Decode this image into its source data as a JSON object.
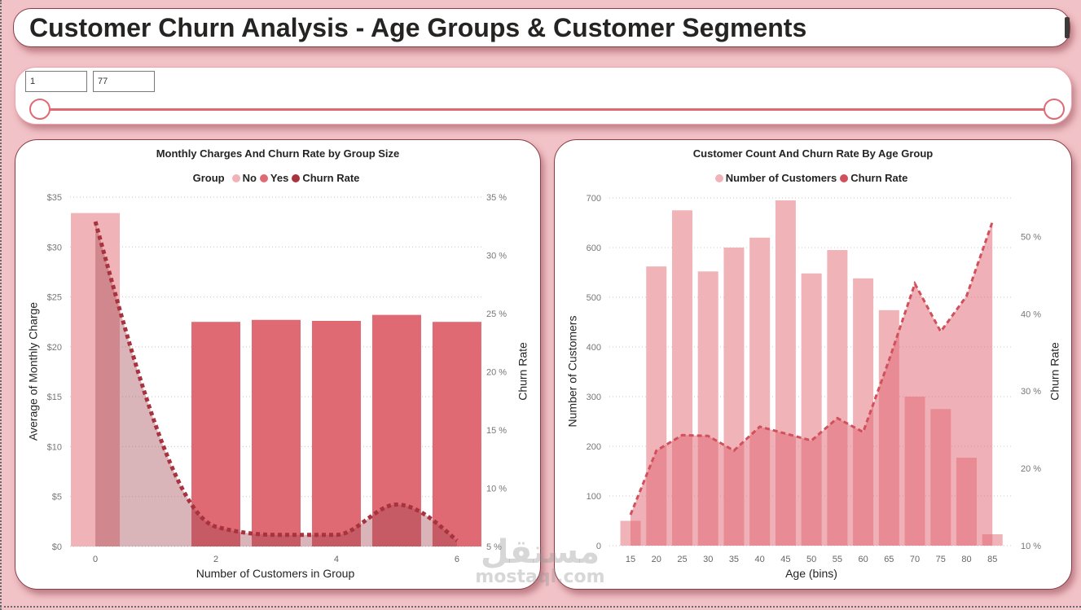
{
  "header": {
    "title": "Customer Churn Analysis - Age Groups & Customer Segments"
  },
  "filter_slider": {
    "min_input": "1",
    "max_input": "77",
    "min": 1,
    "max": 77,
    "selected_range": [
      1,
      77
    ],
    "accent_color": "#e06a74"
  },
  "watermark": {
    "arabic": "مستقل",
    "latin": "mostaql.com"
  },
  "chart_data": [
    {
      "type": "bar",
      "combo": "column-and-line",
      "title": "Monthly Charges And Churn Rate by Group Size",
      "legend": {
        "title": "Group",
        "position": "top-center",
        "items": [
          {
            "label": "No",
            "color": "#f0b3b8"
          },
          {
            "label": "Yes",
            "color": "#e06a74"
          },
          {
            "label": "Churn Rate",
            "color": "#a8323e"
          }
        ]
      },
      "xlabel": "Number of Customers in Group",
      "ylabel": "Average of Monthly Charge",
      "y2label": "Churn Rate",
      "x": [
        0,
        2,
        3,
        4,
        5,
        6
      ],
      "xlim": [
        -0.42,
        6.42
      ],
      "xticks": [
        {
          "value": 0,
          "label": "0"
        },
        {
          "value": 2,
          "label": "2"
        },
        {
          "value": 4,
          "label": "4"
        },
        {
          "value": 6,
          "label": "6"
        }
      ],
      "ylim": [
        0,
        35
      ],
      "yticks": [
        {
          "value": 0,
          "label": "$0"
        },
        {
          "value": 5,
          "label": "$5"
        },
        {
          "value": 10,
          "label": "$10"
        },
        {
          "value": 15,
          "label": "$15"
        },
        {
          "value": 20,
          "label": "$20"
        },
        {
          "value": 25,
          "label": "$25"
        },
        {
          "value": 30,
          "label": "$30"
        },
        {
          "value": 35,
          "label": "$35"
        }
      ],
      "y2lim": [
        5,
        35
      ],
      "y2ticks": [
        {
          "value": 5,
          "label": "5 %"
        },
        {
          "value": 10,
          "label": "10 %"
        },
        {
          "value": 15,
          "label": "15 %"
        },
        {
          "value": 20,
          "label": "20 %"
        },
        {
          "value": 25,
          "label": "25 %"
        },
        {
          "value": 30,
          "label": "30 %"
        },
        {
          "value": 35,
          "label": "35 %"
        }
      ],
      "grid": true,
      "series": [
        {
          "name": "No",
          "type": "bar",
          "axis": "left",
          "color": "#f0b3b8",
          "values": [
            33.4,
            null,
            null,
            null,
            null,
            null
          ]
        },
        {
          "name": "Yes",
          "type": "bar",
          "axis": "left",
          "color": "#e06a74",
          "values": [
            null,
            22.5,
            22.7,
            22.6,
            23.2,
            22.5
          ]
        },
        {
          "name": "Churn Rate",
          "type": "line",
          "axis": "right",
          "unit": "%",
          "smooth": true,
          "line_style": "dotted",
          "area": true,
          "color": "#a8323e",
          "values": [
            32.9,
            6.7,
            6.0,
            6.0,
            8.6,
            5.5
          ]
        }
      ]
    },
    {
      "type": "bar",
      "combo": "column-and-line",
      "title": "Customer Count And Churn Rate By Age Group",
      "legend": {
        "title": "",
        "position": "top-center",
        "items": [
          {
            "label": "Number of Customers",
            "color": "#f0b3b8"
          },
          {
            "label": "Churn Rate",
            "color": "#d0505c"
          }
        ]
      },
      "xlabel": "Age (bins)",
      "ylabel": "Number of Customers",
      "y2label": "Churn Rate",
      "x": [
        15,
        20,
        25,
        30,
        35,
        40,
        45,
        50,
        55,
        60,
        65,
        70,
        75,
        80,
        85
      ],
      "xlim": [
        10.9,
        88.9
      ],
      "xticks": [
        {
          "value": 15,
          "label": "15"
        },
        {
          "value": 20,
          "label": "20"
        },
        {
          "value": 25,
          "label": "25"
        },
        {
          "value": 30,
          "label": "30"
        },
        {
          "value": 35,
          "label": "35"
        },
        {
          "value": 40,
          "label": "40"
        },
        {
          "value": 45,
          "label": "45"
        },
        {
          "value": 50,
          "label": "50"
        },
        {
          "value": 55,
          "label": "55"
        },
        {
          "value": 60,
          "label": "60"
        },
        {
          "value": 65,
          "label": "65"
        },
        {
          "value": 70,
          "label": "70"
        },
        {
          "value": 75,
          "label": "75"
        },
        {
          "value": 80,
          "label": "80"
        },
        {
          "value": 85,
          "label": "85"
        }
      ],
      "ylim": [
        0,
        700
      ],
      "yticks": [
        {
          "value": 0,
          "label": "0"
        },
        {
          "value": 100,
          "label": "100"
        },
        {
          "value": 200,
          "label": "200"
        },
        {
          "value": 300,
          "label": "300"
        },
        {
          "value": 400,
          "label": "400"
        },
        {
          "value": 500,
          "label": "500"
        },
        {
          "value": 600,
          "label": "600"
        },
        {
          "value": 700,
          "label": "700"
        }
      ],
      "y2lim": [
        10,
        55
      ],
      "y2ticks": [
        {
          "value": 10,
          "label": "10 %"
        },
        {
          "value": 20,
          "label": "20 %"
        },
        {
          "value": 30,
          "label": "30 %"
        },
        {
          "value": 40,
          "label": "40 %"
        },
        {
          "value": 50,
          "label": "50 %"
        }
      ],
      "grid": true,
      "series": [
        {
          "name": "Number of Customers",
          "type": "bar",
          "axis": "left",
          "color": "#f0b3b8",
          "values": [
            50,
            562,
            675,
            552,
            600,
            620,
            695,
            548,
            595,
            538,
            474,
            300,
            275,
            177,
            23
          ]
        },
        {
          "name": "Churn Rate",
          "type": "line",
          "axis": "right",
          "unit": "%",
          "smooth": false,
          "line_style": "dashed",
          "area": true,
          "color": "#d0505c",
          "values": [
            14.0,
            22.3,
            24.3,
            24.2,
            22.3,
            25.4,
            24.5,
            23.6,
            26.5,
            24.7,
            34.0,
            43.9,
            37.7,
            42.3,
            51.9
          ]
        }
      ]
    }
  ]
}
